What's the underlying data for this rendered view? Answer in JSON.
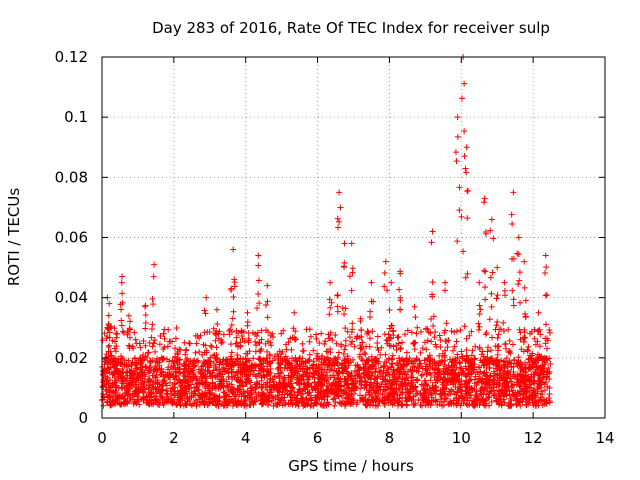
{
  "chart_data": {
    "type": "scatter",
    "title": "Day 283 of 2016, Rate Of TEC Index for receiver sulp",
    "xlabel": "GPS time / hours",
    "ylabel": "ROTI / TECUs",
    "xlim": [
      0,
      14
    ],
    "ylim": [
      0,
      0.12
    ],
    "grid": true,
    "x_ticks": [
      {
        "v": 0,
        "label": "0"
      },
      {
        "v": 2,
        "label": "2"
      },
      {
        "v": 4,
        "label": "4"
      },
      {
        "v": 6,
        "label": "6"
      },
      {
        "v": 8,
        "label": "8"
      },
      {
        "v": 10,
        "label": "10"
      },
      {
        "v": 12,
        "label": "12"
      },
      {
        "v": 14,
        "label": "14"
      }
    ],
    "y_ticks": [
      {
        "v": 0,
        "label": "0"
      },
      {
        "v": 0.02,
        "label": "0.02"
      },
      {
        "v": 0.04,
        "label": "0.04"
      },
      {
        "v": 0.06,
        "label": "0.06"
      },
      {
        "v": 0.08,
        "label": "0.08"
      },
      {
        "v": 0.1,
        "label": "0.1"
      },
      {
        "v": 0.12,
        "label": "0.12"
      }
    ],
    "marker": "+",
    "series_color": "#ff0000",
    "series": [
      {
        "name": "ROTI",
        "x_range": [
          0.0,
          12.5
        ],
        "peaks": [
          {
            "x": 0.15,
            "y": 0.04
          },
          {
            "x": 0.2,
            "y": 0.038
          },
          {
            "x": 0.55,
            "y": 0.045
          },
          {
            "x": 0.75,
            "y": 0.034
          },
          {
            "x": 1.2,
            "y": 0.037
          },
          {
            "x": 1.45,
            "y": 0.051
          },
          {
            "x": 2.3,
            "y": 0.025
          },
          {
            "x": 2.9,
            "y": 0.04
          },
          {
            "x": 3.2,
            "y": 0.036
          },
          {
            "x": 3.6,
            "y": 0.043
          },
          {
            "x": 3.65,
            "y": 0.056
          },
          {
            "x": 4.05,
            "y": 0.035
          },
          {
            "x": 4.35,
            "y": 0.054
          },
          {
            "x": 4.6,
            "y": 0.044
          },
          {
            "x": 5.35,
            "y": 0.035
          },
          {
            "x": 6.35,
            "y": 0.045
          },
          {
            "x": 6.6,
            "y": 0.075
          },
          {
            "x": 6.75,
            "y": 0.058
          },
          {
            "x": 6.95,
            "y": 0.058
          },
          {
            "x": 7.2,
            "y": 0.033
          },
          {
            "x": 7.5,
            "y": 0.045
          },
          {
            "x": 7.9,
            "y": 0.052
          },
          {
            "x": 8.05,
            "y": 0.045
          },
          {
            "x": 8.3,
            "y": 0.048
          },
          {
            "x": 8.7,
            "y": 0.037
          },
          {
            "x": 9.2,
            "y": 0.062
          },
          {
            "x": 9.55,
            "y": 0.045
          },
          {
            "x": 9.9,
            "y": 0.1
          },
          {
            "x": 10.05,
            "y": 0.12
          },
          {
            "x": 10.15,
            "y": 0.09
          },
          {
            "x": 10.5,
            "y": 0.045
          },
          {
            "x": 10.65,
            "y": 0.073
          },
          {
            "x": 10.85,
            "y": 0.066
          },
          {
            "x": 11.0,
            "y": 0.05
          },
          {
            "x": 11.2,
            "y": 0.045
          },
          {
            "x": 11.45,
            "y": 0.075
          },
          {
            "x": 11.6,
            "y": 0.06
          },
          {
            "x": 11.75,
            "y": 0.052
          },
          {
            "x": 12.15,
            "y": 0.035
          },
          {
            "x": 12.35,
            "y": 0.054
          }
        ]
      }
    ]
  }
}
